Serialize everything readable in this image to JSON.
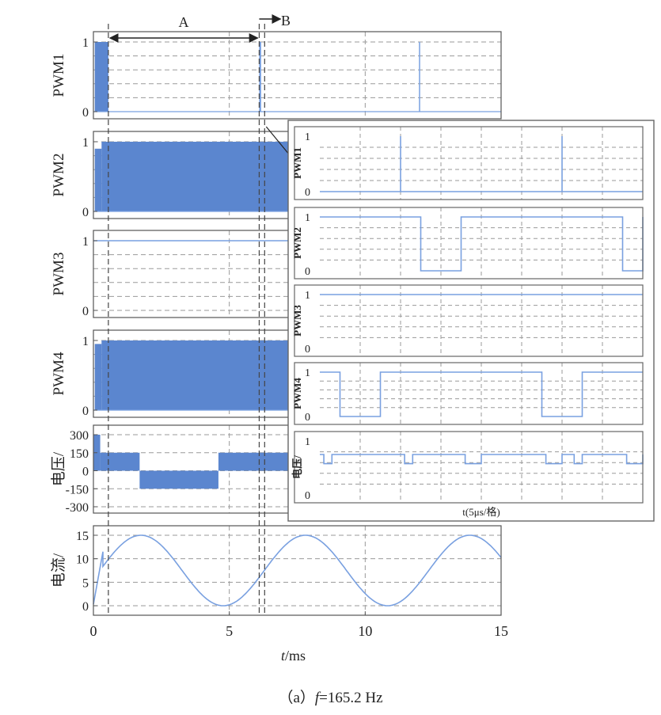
{
  "caption": {
    "prefix": "（a）",
    "var": "f",
    "rest": "=165.2 Hz"
  },
  "annotations": {
    "A": "A",
    "B": "B"
  },
  "colors": {
    "fill": "#5b86cf",
    "line": "#79a0e0",
    "grid": "#9a9a9a",
    "frame": "#555555"
  },
  "chart_data": {
    "type": "line",
    "xlabel": {
      "var": "t",
      "unit": "/ms"
    },
    "xlim": [
      0,
      15
    ],
    "xticks": [
      0,
      5,
      10,
      15
    ],
    "markers": {
      "A_start": 0.55,
      "A_end": 6.1,
      "B": 6.3
    },
    "panels": [
      {
        "id": "pwm1",
        "ylabel": "PWM1",
        "ylim": [
          0,
          1
        ],
        "yticks": [
          0,
          1
        ],
        "blocks": [
          [
            0.05,
            0.55,
            1
          ]
        ],
        "spikes": [
          6.12,
          6.15,
          12.0
        ]
      },
      {
        "id": "pwm2",
        "ylabel": "PWM2",
        "ylim": [
          0,
          1
        ],
        "yticks": [
          0,
          1
        ],
        "blocks": [
          [
            0.05,
            0.3,
            0.9
          ],
          [
            0.3,
            15,
            1
          ]
        ]
      },
      {
        "id": "pwm3",
        "ylabel": "PWM3",
        "ylim": [
          0,
          1
        ],
        "yticks": [
          0,
          1
        ],
        "const": 1
      },
      {
        "id": "pwm4",
        "ylabel": "PWM4",
        "ylim": [
          0,
          1
        ],
        "yticks": [
          0,
          1
        ],
        "blocks": [
          [
            0.05,
            0.3,
            0.95
          ],
          [
            0.3,
            15,
            1
          ]
        ]
      },
      {
        "id": "voltage",
        "ylabel": "电压/",
        "ylim": [
          -300,
          300
        ],
        "yticks": [
          300,
          150,
          0,
          -150,
          -300
        ],
        "bands": [
          [
            0,
            0.25,
            0,
            300
          ],
          [
            0.25,
            1.7,
            0,
            150
          ],
          [
            1.7,
            4.6,
            -150,
            0
          ],
          [
            4.6,
            15,
            0,
            150
          ]
        ]
      },
      {
        "id": "current",
        "ylabel": "电流/",
        "ylim": [
          -1,
          16
        ],
        "yticks": [
          0,
          5,
          10,
          15
        ],
        "sine": {
          "offset": 7.5,
          "amp": 7.5,
          "period_ms": 6.05,
          "peak_ms": 1.75,
          "rise": [
            [
              0,
              0.3
            ],
            [
              0.35,
              11.5
            ]
          ]
        }
      }
    ],
    "inset": {
      "xlabel": "t(5μs/格)",
      "panels": [
        {
          "ylabel": "PWM1",
          "yticks": [
            0,
            1
          ],
          "spikes": [
            2,
            6
          ]
        },
        {
          "ylabel": "PWM2",
          "yticks": [
            0,
            1
          ],
          "low_intervals": [
            [
              2.5,
              3.5
            ],
            [
              7.5,
              8
            ]
          ]
        },
        {
          "ylabel": "PWM3",
          "yticks": [
            0,
            1
          ],
          "const": 1
        },
        {
          "ylabel": "PWM4",
          "yticks": [
            0,
            1
          ],
          "low_intervals": [
            [
              0.5,
              1.5
            ],
            [
              5.5,
              6.5
            ]
          ]
        },
        {
          "ylabel": "电压/",
          "yticks": [
            0,
            1
          ],
          "base": 0.75,
          "dips": [
            [
              0.1,
              0.3,
              0.58
            ],
            [
              2.1,
              2.3,
              0.58
            ],
            [
              3.6,
              4.0,
              0.58
            ],
            [
              5.6,
              6.0,
              0.58
            ],
            [
              6.3,
              6.5,
              0.58
            ],
            [
              7.6,
              8.0,
              0.58
            ]
          ]
        }
      ]
    }
  }
}
